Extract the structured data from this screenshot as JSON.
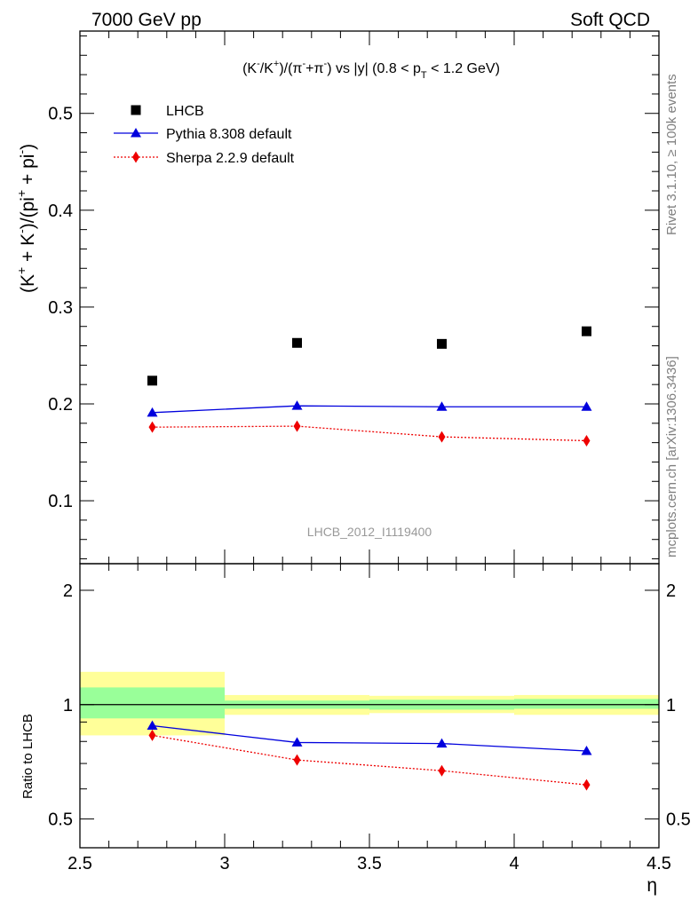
{
  "header": {
    "energy_label": "7000 GeV pp",
    "process_label": "Soft QCD"
  },
  "side_labels": {
    "rivet": "Rivet 3.1.10, ≥ 100k events",
    "mcplots": "mcplots.cern.ch [arXiv:1306.3436]"
  },
  "chart_data": [
    {
      "type": "scatter",
      "panel": "main",
      "title": "(K⁻/K⁺)/(π⁻+π⁻) vs |y| (0.8 < p_T < 1.2 GeV)",
      "title_parts": {
        "prefix": "(K",
        "sup1": "-",
        "mid1": "/K",
        "sup2": "+",
        "mid2": ")/(π",
        "sup3": "-",
        "mid3": "+π",
        "sup4": "-",
        "mid4": ") vs |y| (0.8 < p",
        "sub1": "T",
        "suffix": " < 1.2 GeV)"
      },
      "ylabel": "(K⁺ + K⁻)/(pi⁺ + pi⁻)",
      "ylabel_parts": {
        "p1": "(K",
        "s1": "+",
        "p2": " + K",
        "s2": "-",
        "p3": ")/(pi",
        "s3": "+",
        "p4": " + pi",
        "s4": "-",
        "p5": ")"
      },
      "watermark": "LHCB_2012_I1119400",
      "xlim": [
        2.5,
        4.5
      ],
      "ylim": [
        0.035,
        0.585
      ],
      "yticks": [
        0.1,
        0.2,
        0.3,
        0.4,
        0.5
      ],
      "ytick_labels": [
        "0.1",
        "0.2",
        "0.3",
        "0.4",
        "0.5"
      ],
      "legend_position": "top-left",
      "series": [
        {
          "name": "LHCB",
          "x": [
            2.75,
            3.25,
            3.75,
            4.25
          ],
          "values": [
            0.224,
            0.263,
            0.262,
            0.275
          ],
          "color": "#000000",
          "marker": "square",
          "line": "none"
        },
        {
          "name": "Pythia 8.308 default",
          "x": [
            2.75,
            3.25,
            3.75,
            4.25
          ],
          "values": [
            0.191,
            0.198,
            0.197,
            0.197
          ],
          "color": "#0000dd",
          "marker": "triangle",
          "line": "solid"
        },
        {
          "name": "Sherpa 2.2.9 default",
          "x": [
            2.75,
            3.25,
            3.75,
            4.25
          ],
          "values": [
            0.176,
            0.177,
            0.166,
            0.162
          ],
          "color": "#ee0000",
          "marker": "diamond",
          "line": "dotted"
        }
      ]
    },
    {
      "type": "line",
      "panel": "ratio",
      "ylabel": "Ratio to LHCB",
      "xlabel": "η",
      "xlim": [
        2.5,
        4.5
      ],
      "ylim": [
        0.42,
        2.35
      ],
      "ylog": true,
      "xticks": [
        2.5,
        3,
        3.5,
        4,
        4.5
      ],
      "xtick_labels": [
        "2.5",
        "3",
        "3.5",
        "4",
        "4.5"
      ],
      "yticks": [
        0.5,
        1,
        2
      ],
      "ytick_labels": [
        "0.5",
        "1",
        "2"
      ],
      "uncertainty_bands": [
        {
          "x_range": [
            2.5,
            3.0
          ],
          "stat": [
            0.92,
            1.11
          ],
          "total": [
            0.83,
            1.22
          ]
        },
        {
          "x_range": [
            3.0,
            3.5
          ],
          "stat": [
            0.975,
            1.025
          ],
          "total": [
            0.94,
            1.06
          ]
        },
        {
          "x_range": [
            3.5,
            4.0
          ],
          "stat": [
            0.97,
            1.03
          ],
          "total": [
            0.95,
            1.055
          ]
        },
        {
          "x_range": [
            4.0,
            4.5
          ],
          "stat": [
            0.975,
            1.035
          ],
          "total": [
            0.94,
            1.06
          ]
        }
      ],
      "band_colors": {
        "stat": "#99ff99",
        "total": "#ffff99"
      },
      "series": [
        {
          "name": "Pythia 8.308 default",
          "x": [
            2.75,
            3.25,
            3.75,
            4.25
          ],
          "values": [
            0.88,
            0.795,
            0.79,
            0.755
          ],
          "color": "#0000dd",
          "marker": "triangle",
          "line": "solid"
        },
        {
          "name": "Sherpa 2.2.9 default",
          "x": [
            2.75,
            3.25,
            3.75,
            4.25
          ],
          "values": [
            0.83,
            0.715,
            0.67,
            0.615
          ],
          "color": "#ee0000",
          "marker": "diamond",
          "line": "dotted"
        }
      ]
    }
  ]
}
